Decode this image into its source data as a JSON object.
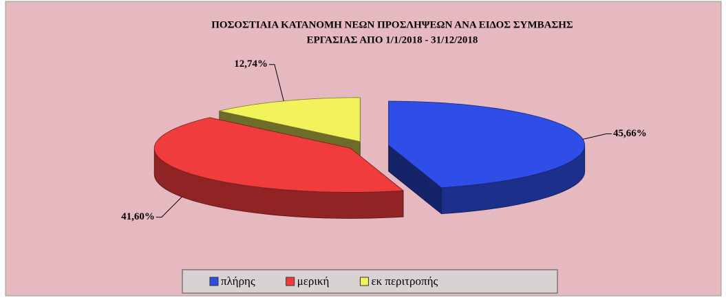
{
  "chart_data": {
    "type": "pie3d",
    "title": [
      "ΠΟΣΟΣΤΙΑΙΑ ΚΑΤΑΝΟΜΗ ΝΕΩΝ ΠΡΟΣΛΗΨΕΩΝ ΑΝΑ ΕΙΔΟΣ ΣΥΜΒΑΣΗΣ",
      "ΕΡΓΑΣΙΑΣ ΑΠΟ 1/1/2018 - 31/12/2018"
    ],
    "categories": [
      "πλήρης",
      "μερική",
      "εκ περιτροπής"
    ],
    "values": [
      45.66,
      41.6,
      12.74
    ],
    "value_labels": [
      "45,66%",
      "41,60%",
      "12,74%"
    ],
    "colors": [
      "#2f4ee8",
      "#f03c3c",
      "#f2f25a"
    ],
    "legend": "bottom"
  }
}
